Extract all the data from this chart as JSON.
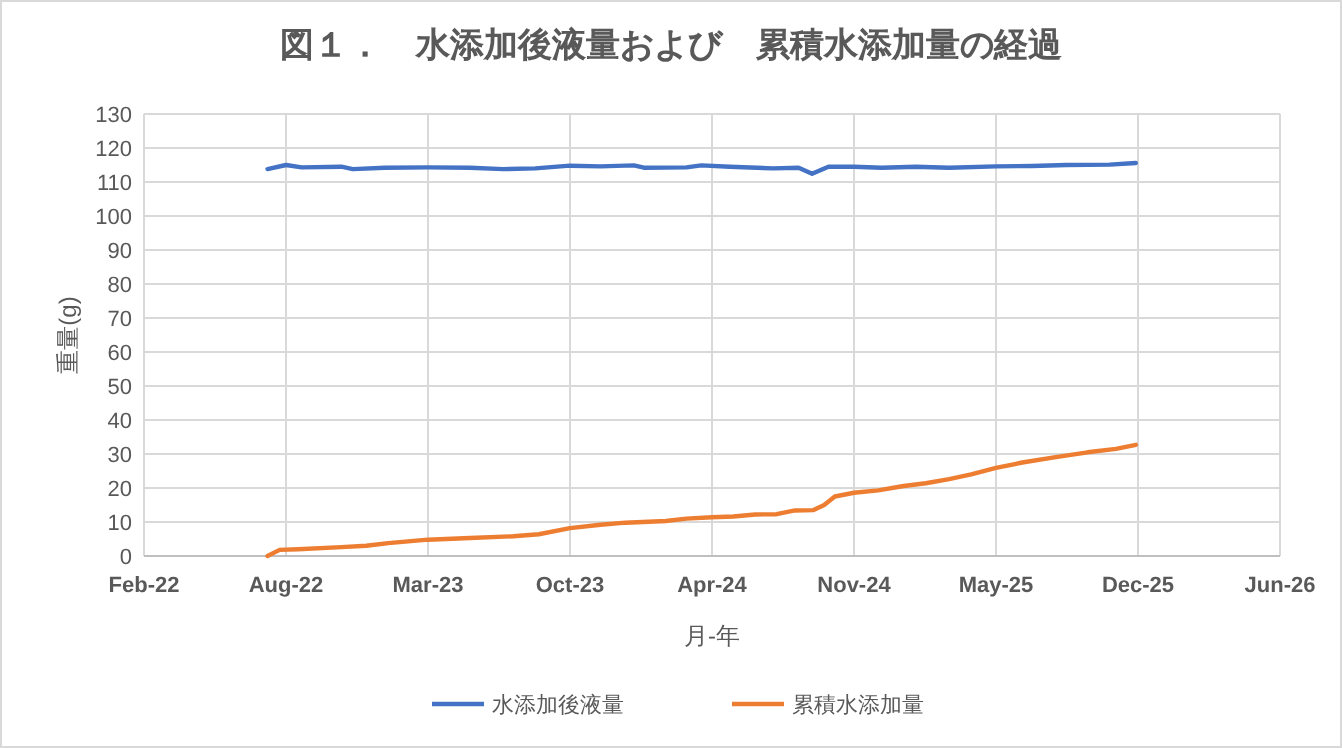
{
  "chart_data": {
    "type": "line",
    "title": "図１．　水添加後液量および　累積水添加量の経過",
    "xlabel": "月-年",
    "ylabel": "重量(g)",
    "xlim": [
      "2022-02-10",
      "2026-06-29"
    ],
    "xticks": [
      {
        "value": "2022-02-10",
        "label": "Feb-22"
      },
      {
        "value": "2022-08-29",
        "label": "Aug-22"
      },
      {
        "value": "2023-03-17",
        "label": "Mar-23"
      },
      {
        "value": "2023-10-03",
        "label": "Oct-23"
      },
      {
        "value": "2024-04-20",
        "label": "Apr-24"
      },
      {
        "value": "2024-11-06",
        "label": "Nov-24"
      },
      {
        "value": "2025-05-25",
        "label": "May-25"
      },
      {
        "value": "2025-12-11",
        "label": "Dec-25"
      },
      {
        "value": "2026-06-29",
        "label": "Jun-26"
      }
    ],
    "ylim": [
      0,
      130
    ],
    "yticks": [
      0,
      10,
      20,
      30,
      40,
      50,
      60,
      70,
      80,
      90,
      100,
      110,
      120,
      130
    ],
    "grid": true,
    "legend": "bottom",
    "marker": "none",
    "line_style": "solid",
    "series": [
      {
        "name": "水添加後液量",
        "color": "#4472c4",
        "x": [
          "2022-08-03",
          "2022-08-29",
          "2022-09-20",
          "2022-11-15",
          "2022-12-01",
          "2023-01-15",
          "2023-03-17",
          "2023-05-15",
          "2023-07-01",
          "2023-08-15",
          "2023-10-03",
          "2023-11-15",
          "2024-01-01",
          "2024-01-15",
          "2024-03-15",
          "2024-04-05",
          "2024-05-15",
          "2024-07-15",
          "2024-08-20",
          "2024-09-08",
          "2024-10-01",
          "2024-11-06",
          "2024-12-15",
          "2025-02-01",
          "2025-03-20",
          "2025-05-25",
          "2025-07-15",
          "2025-09-01",
          "2025-11-01",
          "2025-12-08"
        ],
        "values": [
          113.8,
          115.0,
          114.3,
          114.5,
          113.8,
          114.2,
          114.3,
          114.2,
          113.8,
          114.0,
          114.8,
          114.6,
          114.9,
          114.2,
          114.3,
          114.9,
          114.5,
          114.0,
          114.2,
          112.4,
          114.5,
          114.5,
          114.2,
          114.5,
          114.2,
          114.6,
          114.7,
          115.0,
          115.1,
          115.6
        ]
      },
      {
        "name": "累積水添加量",
        "color": "#ed7d31",
        "x": [
          "2022-08-03",
          "2022-08-20",
          "2022-09-15",
          "2022-11-15",
          "2022-12-20",
          "2023-01-20",
          "2023-03-17",
          "2023-05-15",
          "2023-07-15",
          "2023-08-20",
          "2023-10-03",
          "2023-11-15",
          "2023-12-20",
          "2024-02-15",
          "2024-03-15",
          "2024-04-20",
          "2024-05-20",
          "2024-06-20",
          "2024-07-20",
          "2024-08-15",
          "2024-09-10",
          "2024-09-25",
          "2024-10-10",
          "2024-11-06",
          "2024-12-10",
          "2025-01-15",
          "2025-02-15",
          "2025-03-20",
          "2025-04-20",
          "2025-05-25",
          "2025-07-01",
          "2025-08-15",
          "2025-10-01",
          "2025-11-10",
          "2025-12-08"
        ],
        "values": [
          0,
          1.8,
          2.0,
          2.6,
          3.0,
          3.8,
          4.8,
          5.3,
          5.8,
          6.4,
          8.2,
          9.2,
          9.8,
          10.3,
          11.0,
          11.4,
          11.6,
          12.2,
          12.3,
          13.4,
          13.5,
          15.0,
          17.5,
          18.6,
          19.3,
          20.6,
          21.4,
          22.6,
          24.0,
          25.9,
          27.5,
          29.0,
          30.5,
          31.5,
          32.7
        ]
      }
    ]
  }
}
